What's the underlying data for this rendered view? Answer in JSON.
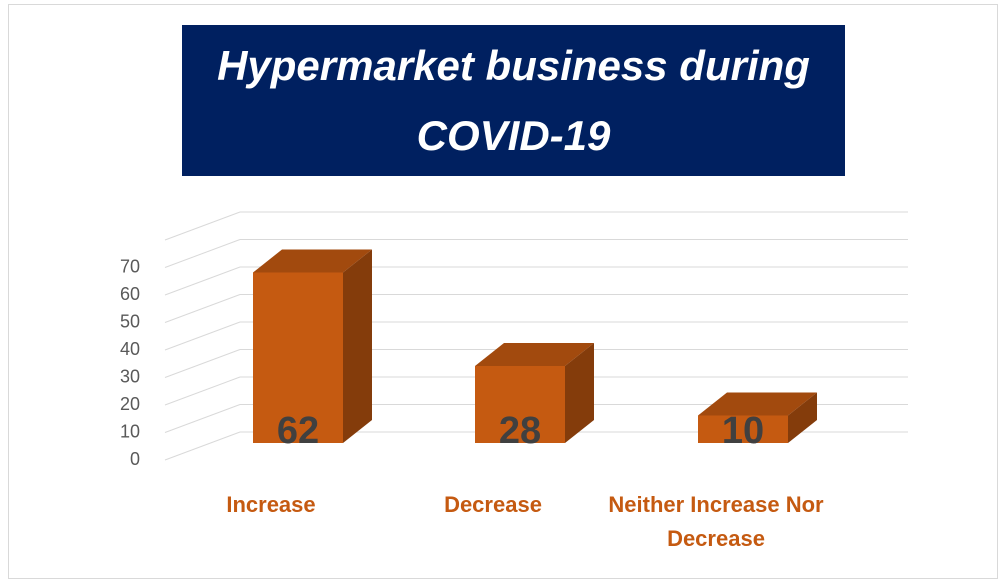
{
  "chart_data": {
    "type": "bar3d",
    "title": "Hypermarket business during COVID-19",
    "categories": [
      "Increase",
      "Decrease",
      "Neither Increase Nor Decrease"
    ],
    "values": [
      62,
      28,
      10
    ],
    "color": "#c55a11",
    "ylim": [
      0,
      80
    ],
    "yticks": [
      0,
      10,
      20,
      30,
      40,
      50,
      60,
      70
    ],
    "grid": true
  }
}
